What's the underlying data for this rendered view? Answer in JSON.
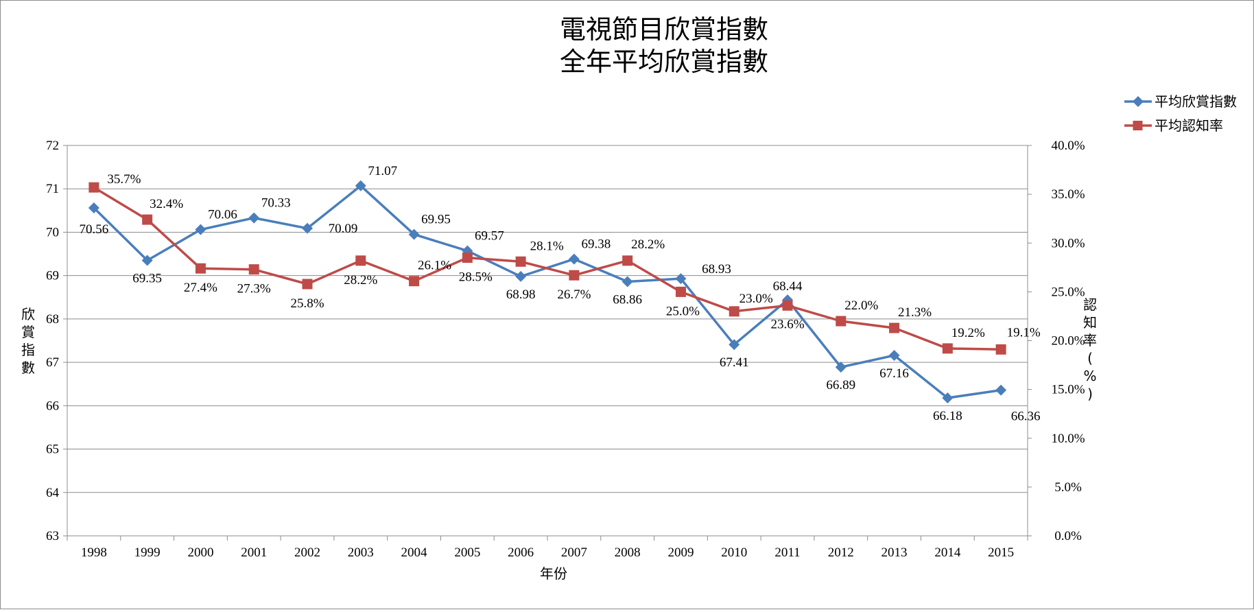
{
  "chart_data": {
    "type": "line",
    "title": "電視節目欣賞指數",
    "subtitle": "全年平均欣賞指數",
    "xlabel": "年份",
    "ylabel": "欣賞指數",
    "y2label": "認知率(%)",
    "categories": [
      "1998",
      "1999",
      "2000",
      "2001",
      "2002",
      "2003",
      "2004",
      "2005",
      "2006",
      "2007",
      "2008",
      "2009",
      "2010",
      "2011",
      "2012",
      "2013",
      "2014",
      "2015"
    ],
    "ylim": [
      63,
      72
    ],
    "y2lim": [
      0,
      40
    ],
    "y_ticks": [
      "72",
      "71",
      "70",
      "69",
      "68",
      "67",
      "66",
      "65",
      "64",
      "63"
    ],
    "y2_ticks": [
      "40.0%",
      "35.0%",
      "30.0%",
      "25.0%",
      "20.0%",
      "15.0%",
      "10.0%",
      "5.0%",
      "0.0%"
    ],
    "grid": true,
    "legend_position": "top-right",
    "series": [
      {
        "name": "平均欣賞指數",
        "axis": "left",
        "color": "#4a7ebb",
        "marker": "diamond",
        "values": [
          70.56,
          69.35,
          70.06,
          70.33,
          70.09,
          71.07,
          69.95,
          69.57,
          68.98,
          69.38,
          68.86,
          68.93,
          67.41,
          68.44,
          66.89,
          67.16,
          66.18,
          66.36
        ],
        "labels": [
          "70.56",
          "69.35",
          "70.06",
          "70.33",
          "70.09",
          "71.07",
          "69.95",
          "69.57",
          "68.98",
          "69.38",
          "68.86",
          "68.93",
          "67.41",
          "68.44",
          "66.89",
          "67.16",
          "66.18",
          "66.36"
        ]
      },
      {
        "name": "平均認知率",
        "axis": "right",
        "color": "#be4b48",
        "marker": "square",
        "values": [
          35.7,
          32.4,
          27.4,
          27.3,
          25.8,
          28.2,
          26.1,
          28.5,
          28.1,
          26.7,
          28.2,
          25.0,
          23.0,
          23.6,
          22.0,
          21.3,
          19.2,
          19.1
        ],
        "labels": [
          "35.7%",
          "32.4%",
          "27.4%",
          "27.3%",
          "25.8%",
          "28.2%",
          "26.1%",
          "28.5%",
          "28.1%",
          "26.7%",
          "28.2%",
          "25.0%",
          "23.0%",
          "23.6%",
          "22.0%",
          "21.3%",
          "19.2%",
          "19.1%"
        ]
      }
    ]
  }
}
